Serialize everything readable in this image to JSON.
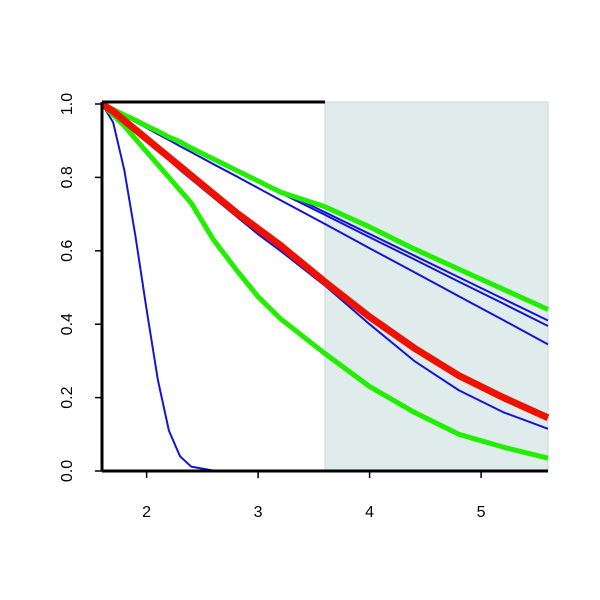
{
  "chart_data": {
    "type": "line",
    "x": [
      1.6,
      1.7,
      1.8,
      1.9,
      2.0,
      2.1,
      2.2,
      2.3,
      2.4,
      2.6,
      2.8,
      3.0,
      3.2,
      3.6,
      4.0,
      4.4,
      4.8,
      5.2,
      5.6
    ],
    "series": [
      {
        "color": "#1515d0",
        "width": 2,
        "values": [
          1.0,
          0.95,
          0.82,
          0.64,
          0.44,
          0.25,
          0.11,
          0.04,
          0.012,
          0.001,
          0,
          0,
          0,
          0,
          0,
          0,
          0,
          0,
          0
        ]
      },
      {
        "color": "#1515d0",
        "width": 2,
        "values": [
          1,
          0.985,
          0.971,
          0.956,
          0.941,
          0.926,
          0.912,
          0.897,
          0.882,
          0.853,
          0.823,
          0.794,
          0.764,
          0.705,
          0.646,
          0.587,
          0.528,
          0.469,
          0.41
        ]
      },
      {
        "color": "#1515d0",
        "width": 2,
        "values": [
          1,
          0.985,
          0.97,
          0.955,
          0.94,
          0.924,
          0.909,
          0.894,
          0.879,
          0.849,
          0.819,
          0.788,
          0.758,
          0.698,
          0.637,
          0.577,
          0.516,
          0.456,
          0.395
        ]
      },
      {
        "color": "#1515d0",
        "width": 2,
        "values": [
          1,
          0.984,
          0.967,
          0.951,
          0.935,
          0.918,
          0.902,
          0.885,
          0.869,
          0.836,
          0.804,
          0.771,
          0.738,
          0.673,
          0.607,
          0.542,
          0.476,
          0.411,
          0.345
        ]
      },
      {
        "color": "#1515d0",
        "width": 2,
        "values": [
          1.0,
          0.98,
          0.955,
          0.928,
          0.9,
          0.875,
          0.848,
          0.82,
          0.795,
          0.745,
          0.695,
          0.645,
          0.6,
          0.505,
          0.4,
          0.3,
          0.22,
          0.16,
          0.115
        ]
      },
      {
        "color": "#22ee00",
        "width": 5,
        "values": [
          1.0,
          0.985,
          0.97,
          0.956,
          0.94,
          0.926,
          0.91,
          0.897,
          0.88,
          0.85,
          0.82,
          0.79,
          0.76,
          0.72,
          0.665,
          0.605,
          0.55,
          0.495,
          0.44
        ]
      },
      {
        "color": "#22ee00",
        "width": 5,
        "values": [
          1.0,
          0.97,
          0.94,
          0.905,
          0.87,
          0.835,
          0.8,
          0.765,
          0.73,
          0.63,
          0.55,
          0.475,
          0.415,
          0.32,
          0.23,
          0.16,
          0.1,
          0.065,
          0.035
        ]
      },
      {
        "color": "#ee1100",
        "width": 7,
        "values": [
          1.0,
          0.98,
          0.955,
          0.93,
          0.905,
          0.88,
          0.855,
          0.83,
          0.805,
          0.755,
          0.705,
          0.66,
          0.615,
          0.515,
          0.42,
          0.335,
          0.26,
          0.2,
          0.145
        ]
      }
    ],
    "xlim": [
      1.6,
      5.6
    ],
    "xticks": [
      2,
      3,
      4,
      5
    ],
    "ylim": [
      0,
      1
    ],
    "yticks": [
      {
        "value": 0,
        "label": "0.0"
      },
      0.2,
      0.4,
      0.6,
      0.8,
      {
        "value": 1,
        "label": "1.0"
      }
    ],
    "shaded_region": {
      "xlim": [
        3.6,
        5.6
      ],
      "color": "#dfeceb"
    }
  }
}
